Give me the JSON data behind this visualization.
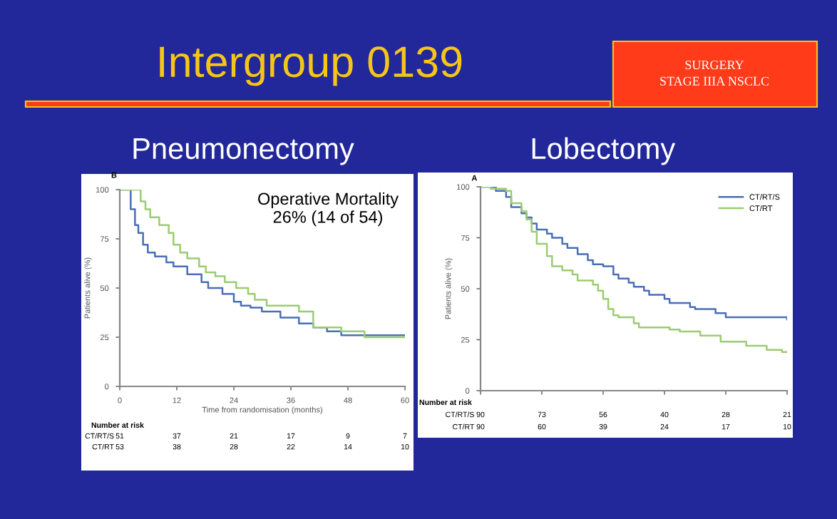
{
  "chart_data": [
    {
      "type": "step",
      "title": "Pneumonectomy",
      "xlabel": "Time from randomisation (months)",
      "ylabel": "Patients alive (%)",
      "annotations": [
        "Intergroup 0139",
        "SURGERY\nSTAGE IIIA NSCLC",
        "B",
        "Operative Mortality\n26% (14 of 54)",
        "Number at risk",
        "CT/RT/S 51 37 21 17 9 7",
        "CT/RT 53 38 28 22 14 10"
      ],
      "series": [
        {
          "color": "#4a6fb5",
          "x": [
            0,
            2.3,
            3.2,
            3.9,
            4.9,
            5.9,
            7.4,
            9.8,
            11.3,
            14.2,
            17.2,
            18.6,
            21.6,
            24,
            25.5,
            27.5,
            29.9,
            33.8,
            37.7,
            40.7,
            43.6,
            46.6,
            53.4,
            60
          ],
          "values": [
            100,
            90,
            82,
            78,
            72,
            68,
            66,
            63,
            61,
            57,
            53,
            50,
            47,
            43,
            41,
            40,
            38,
            35,
            32,
            30,
            28,
            26,
            26,
            26
          ]
        },
        {
          "color": "#9ccc70",
          "x": [
            0,
            4.4,
            5.4,
            6.4,
            8.3,
            10.3,
            11.3,
            12.7,
            14.2,
            16.7,
            18.1,
            20.1,
            22.1,
            24.5,
            27,
            28.4,
            30.9,
            37.7,
            40.7,
            46.6,
            51.5,
            53.4,
            60
          ],
          "values": [
            100,
            94,
            90,
            86,
            82,
            78,
            72,
            68,
            65,
            61,
            58,
            56,
            53,
            50,
            47,
            44,
            41,
            38,
            30,
            28,
            25,
            25,
            25
          ]
        }
      ],
      "xlim": [
        0,
        60
      ],
      "xticks": [
        0,
        12,
        24,
        36,
        48,
        60
      ],
      "ylim": [
        0,
        100
      ],
      "yticks": [
        0,
        25,
        50,
        75,
        100
      ],
      "grid": false,
      "legend": false
    },
    {
      "type": "step",
      "title": "Lobectomy",
      "ylabel": "Patients alive (%)",
      "annotations": [
        "A",
        "Number at risk",
        "CT/RT/S 90 73 56 40 28 21",
        "CT/RT 90 60 39 24 17 10"
      ],
      "series": [
        {
          "name": "CT/RT/S",
          "color": "#4a6fb5",
          "values": [
            100,
            100,
            100,
            98,
            98,
            95,
            90,
            90,
            87,
            85,
            82,
            79,
            79,
            77,
            75,
            75,
            72,
            70,
            70,
            67,
            67,
            64,
            62,
            62,
            61,
            61,
            57,
            55,
            55,
            53,
            51,
            51,
            49,
            47,
            47,
            47,
            45,
            43,
            43,
            43,
            43,
            41,
            40,
            40,
            40,
            40,
            38,
            38,
            36,
            36,
            36,
            36,
            36,
            36,
            36,
            36,
            36,
            36,
            36,
            36,
            35
          ]
        },
        {
          "name": "CT/RT",
          "color": "#9ccc70",
          "values": [
            100,
            100,
            99,
            99,
            99,
            98,
            92,
            92,
            88,
            84,
            78,
            72,
            72,
            66,
            61,
            61,
            59,
            59,
            57,
            54,
            54,
            54,
            52,
            49,
            45,
            40,
            37,
            36,
            36,
            36,
            33,
            31,
            31,
            31,
            31,
            31,
            31,
            30,
            30,
            29,
            29,
            29,
            29,
            27,
            27,
            27,
            27,
            24,
            24,
            24,
            24,
            24,
            22,
            22,
            22,
            22,
            20,
            20,
            20,
            19,
            19
          ]
        }
      ],
      "categories": [
        null,
        null,
        null,
        null,
        null,
        null,
        null,
        null,
        null,
        null,
        null,
        null,
        null,
        null,
        null,
        null,
        null,
        null,
        null,
        null,
        null,
        null,
        null,
        null,
        null,
        null,
        null,
        null,
        null,
        null,
        null,
        null,
        null,
        null,
        null,
        null,
        null,
        null,
        null,
        null,
        null,
        null,
        null,
        null,
        null,
        null,
        null,
        null,
        null,
        null,
        null,
        null,
        null,
        null,
        null,
        null,
        null,
        null,
        null,
        null,
        null
      ],
      "ylim": [
        0,
        100
      ],
      "yticks": [
        0,
        25,
        50,
        75,
        100
      ],
      "grid": false,
      "legend": "top right"
    }
  ]
}
